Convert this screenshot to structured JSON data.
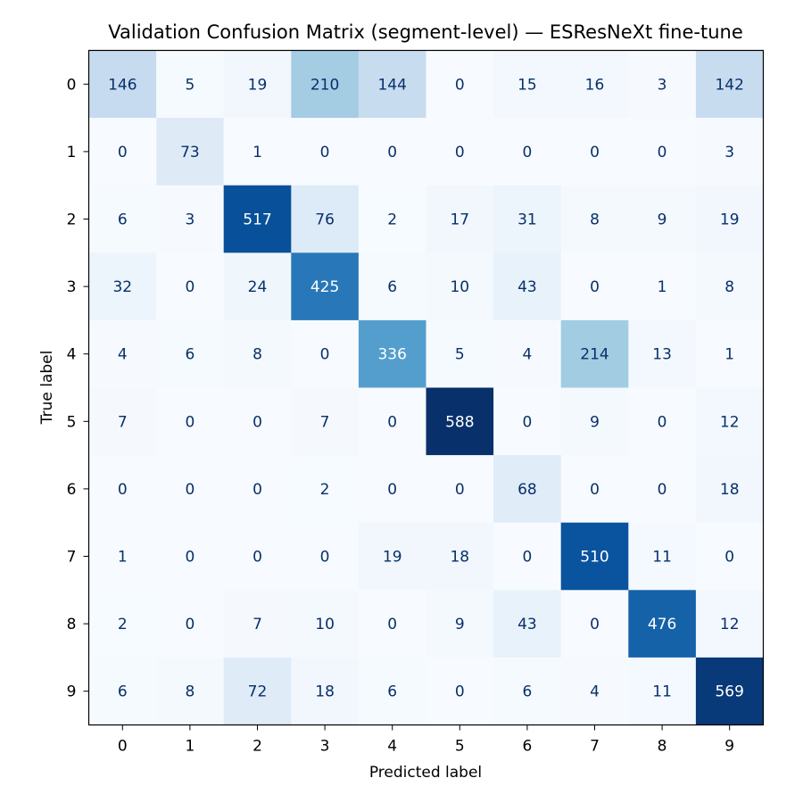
{
  "chart_data": {
    "type": "heatmap",
    "title": "Validation Confusion Matrix (segment-level) — ESResNeXt fine-tune",
    "xlabel": "Predicted label",
    "ylabel": "True label",
    "x_categories": [
      "0",
      "1",
      "2",
      "3",
      "4",
      "5",
      "6",
      "7",
      "8",
      "9"
    ],
    "y_categories": [
      "0",
      "1",
      "2",
      "3",
      "4",
      "5",
      "6",
      "7",
      "8",
      "9"
    ],
    "values": [
      [
        146,
        5,
        19,
        210,
        144,
        0,
        15,
        16,
        3,
        142
      ],
      [
        0,
        73,
        1,
        0,
        0,
        0,
        0,
        0,
        0,
        3
      ],
      [
        6,
        3,
        517,
        76,
        2,
        17,
        31,
        8,
        9,
        19
      ],
      [
        32,
        0,
        24,
        425,
        6,
        10,
        43,
        0,
        1,
        8
      ],
      [
        4,
        6,
        8,
        0,
        336,
        5,
        4,
        214,
        13,
        1
      ],
      [
        7,
        0,
        0,
        7,
        0,
        588,
        0,
        9,
        0,
        12
      ],
      [
        0,
        0,
        0,
        2,
        0,
        0,
        68,
        0,
        0,
        18
      ],
      [
        1,
        0,
        0,
        0,
        19,
        18,
        0,
        510,
        11,
        0
      ],
      [
        2,
        0,
        7,
        10,
        0,
        9,
        43,
        0,
        476,
        12
      ],
      [
        6,
        8,
        72,
        18,
        6,
        0,
        6,
        4,
        11,
        569
      ]
    ],
    "value_range": [
      0,
      588
    ],
    "colormap": "Blues",
    "colorbar": false,
    "grid": false
  }
}
